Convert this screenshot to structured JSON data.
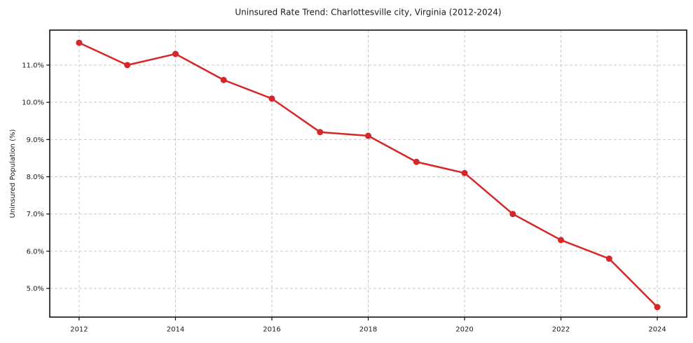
{
  "chart_data": {
    "type": "line",
    "title": "Uninsured Rate Trend: Charlottesville city, Virginia (2012-2024)",
    "xlabel": "",
    "ylabel": "Uninsured Population (%)",
    "x": [
      2012,
      2013,
      2014,
      2015,
      2016,
      2017,
      2018,
      2019,
      2020,
      2021,
      2022,
      2023,
      2024
    ],
    "series": [
      {
        "values": [
          11.6,
          11.0,
          11.3,
          10.6,
          10.1,
          9.2,
          9.1,
          8.4,
          8.1,
          7.0,
          6.3,
          5.8,
          4.5
        ],
        "color": "#d62728",
        "marker": "circle",
        "marker_radius": 4.5,
        "line_width": 2.5
      }
    ],
    "xticks": {
      "values": [
        2012,
        2014,
        2016,
        2018,
        2020,
        2022,
        2024
      ],
      "labels": [
        "2012",
        "2014",
        "2016",
        "2018",
        "2020",
        "2022",
        "2024"
      ]
    },
    "yticks": {
      "values": [
        5.0,
        6.0,
        7.0,
        8.0,
        9.0,
        10.0,
        11.0
      ],
      "labels": [
        "5.0%",
        "6.0%",
        "7.0%",
        "8.0%",
        "9.0%",
        "10.0%",
        "11.0%"
      ]
    },
    "xlim": [
      2011.39,
      2024.61
    ],
    "ylim": [
      4.23,
      11.94
    ],
    "grid": true,
    "grid_color": "#c9c9c9",
    "grid_style": "dashed",
    "legend": false,
    "background": "#ffffff",
    "frame_color": "#000000",
    "tick_color": "#000000",
    "text_color": "#1a1a1a"
  }
}
